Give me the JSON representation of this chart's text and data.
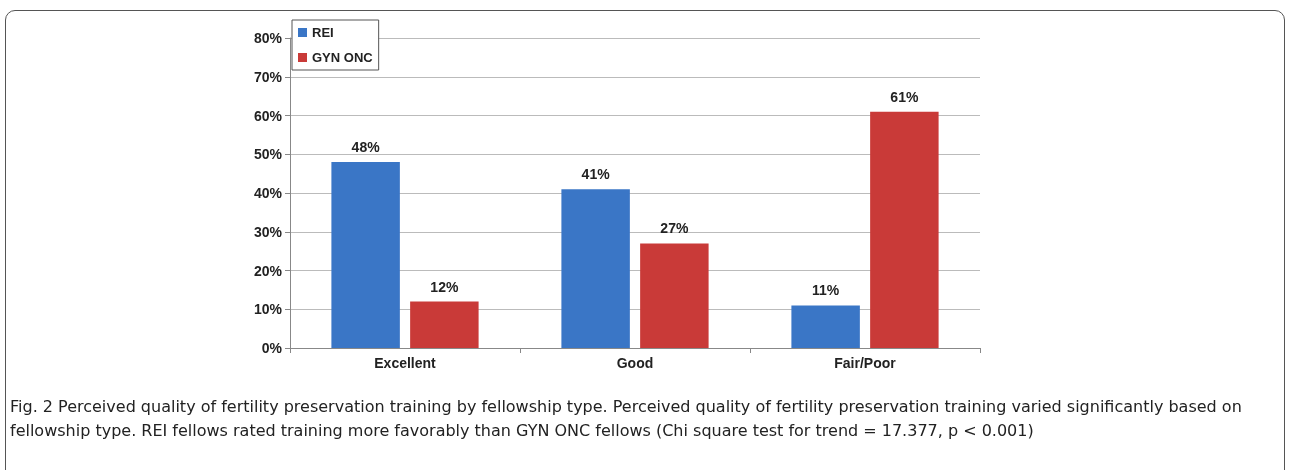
{
  "chart_data": {
    "type": "bar",
    "categories": [
      "Excellent",
      "Good",
      "Fair/Poor"
    ],
    "series": [
      {
        "name": "REI",
        "color": "#3a76c6",
        "values": [
          48,
          41,
          11
        ],
        "value_labels": [
          "48%",
          "41%",
          "11%"
        ]
      },
      {
        "name": "GYN ONC",
        "color": "#c93a38",
        "values": [
          12,
          27,
          61
        ],
        "value_labels": [
          "12%",
          "27%",
          "61%"
        ]
      }
    ],
    "ylim": [
      0,
      80
    ],
    "yticks": [
      {
        "value": 0,
        "label": "0%"
      },
      {
        "value": 10,
        "label": "10%"
      },
      {
        "value": 20,
        "label": "20%"
      },
      {
        "value": 30,
        "label": "30%"
      },
      {
        "value": 40,
        "label": "40%"
      },
      {
        "value": 50,
        "label": "50%"
      },
      {
        "value": 60,
        "label": "60%"
      },
      {
        "value": 70,
        "label": "70%"
      },
      {
        "value": 80,
        "label": "80%"
      }
    ],
    "grid": "y",
    "legend": "top left",
    "annotations": [
      "Fig. 2 Perceived quality of fertility preservation training by fellowship type. Perceived quality of fertility preservation training varied significantly based on fellowship type. REI fellows rated training more favorably than GYN ONC fellows (Chi square test for trend = 17.377, p < 0.001)"
    ]
  }
}
